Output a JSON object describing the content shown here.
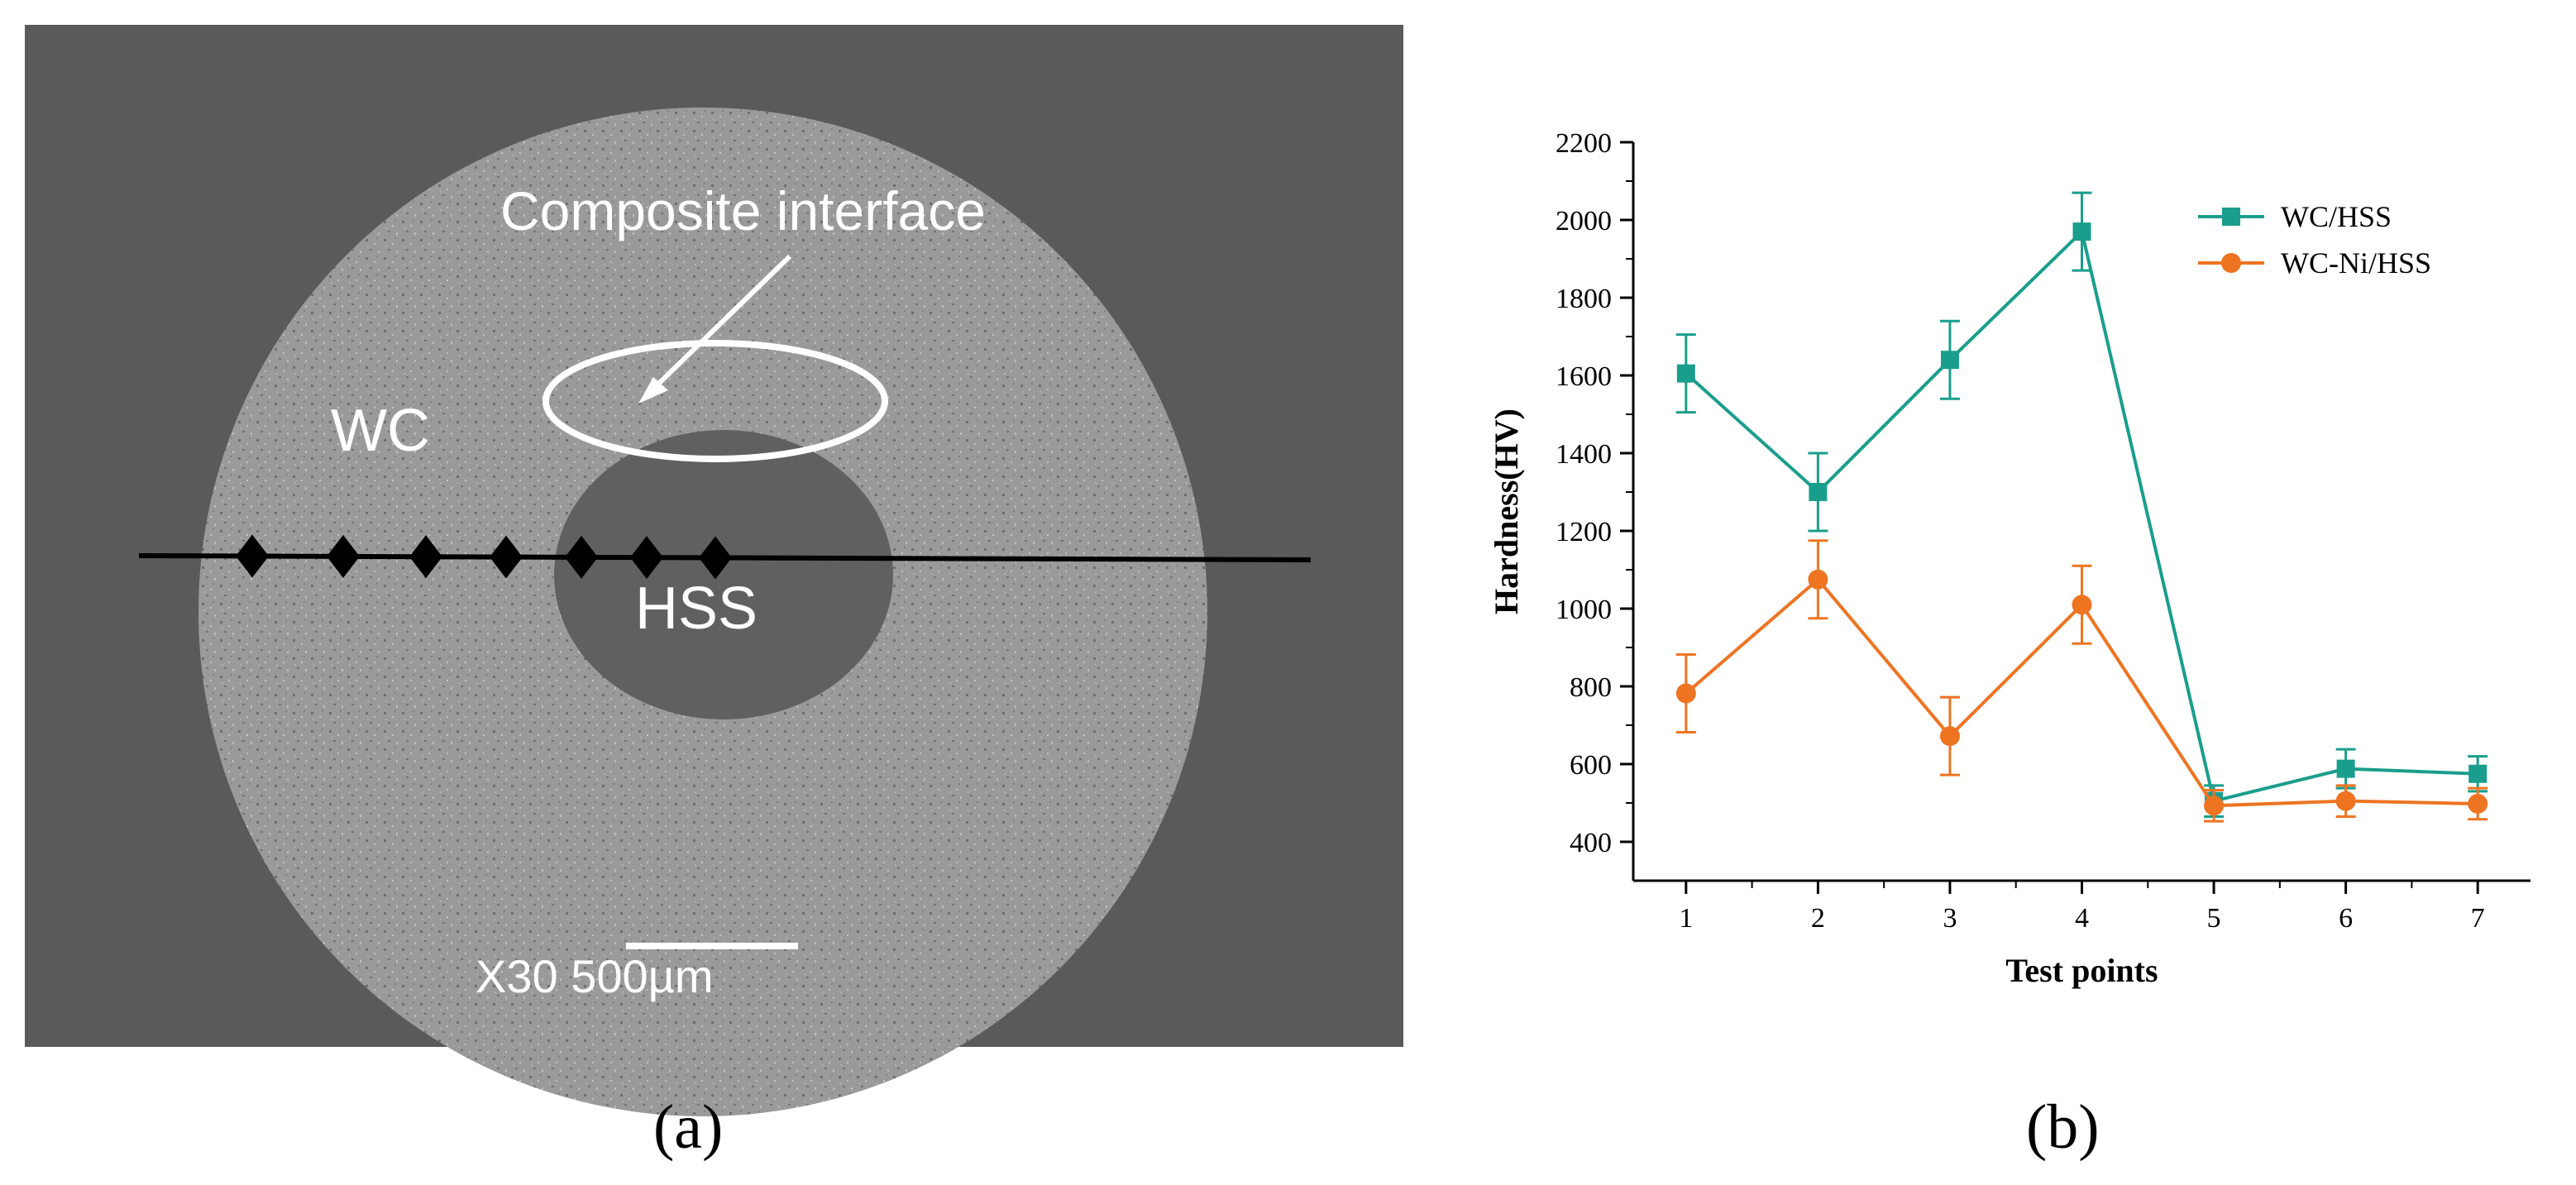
{
  "panel_a": {
    "caption": "(a)",
    "labels": {
      "interface": "Composite interface",
      "outer": "WC",
      "inner": "HSS",
      "scale_bar": "X30 500µm"
    },
    "colors": {
      "background": "#5a5a5a",
      "ring": "#9a9a9a",
      "core": "#606060",
      "marker": "#000000"
    },
    "marker_icon": "diamond-icon"
  },
  "panel_b": {
    "caption": "(b)"
  },
  "chart_data": {
    "type": "line",
    "title": "",
    "xlabel": "Test points",
    "ylabel": "Hardness(HV)",
    "x": [
      1,
      2,
      3,
      4,
      5,
      6,
      7
    ],
    "xticks": [
      "1",
      "2",
      "3",
      "4",
      "5",
      "6",
      "7"
    ],
    "xlim": [
      0.6,
      7.4
    ],
    "ylim": [
      300,
      2200
    ],
    "yticks": [
      400,
      600,
      800,
      1000,
      1200,
      1400,
      1600,
      1800,
      2000,
      2200
    ],
    "grid": false,
    "legend_position": "top-right",
    "series": [
      {
        "name": "WC/HSS",
        "color": "#1a9e8c",
        "marker": "square",
        "values": [
          1605,
          1300,
          1640,
          1970,
          505,
          588,
          575
        ],
        "errors": [
          100,
          100,
          100,
          100,
          40,
          50,
          45
        ]
      },
      {
        "name": "WC-Ni/HSS",
        "color": "#ee7422",
        "marker": "circle",
        "values": [
          782,
          1075,
          672,
          1010,
          493,
          505,
          498
        ],
        "errors": [
          100,
          100,
          100,
          100,
          40,
          40,
          40
        ]
      }
    ]
  }
}
